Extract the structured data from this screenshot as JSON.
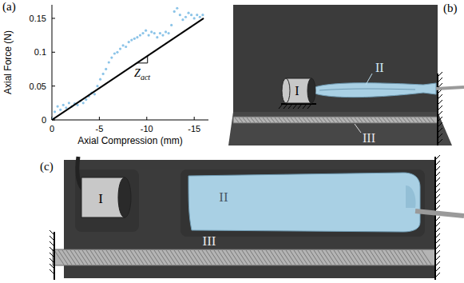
{
  "chart_data": {
    "type": "scatter",
    "x_label": "Axial Compression (mm)",
    "y_label": "Axial Force (N)",
    "xlim": [
      0,
      -16.5
    ],
    "ylim": [
      0,
      0.17
    ],
    "xticks": [
      0,
      -5,
      -10,
      -15
    ],
    "yticks": [
      0,
      0.05,
      0.1,
      0.15
    ],
    "series": [
      {
        "type": "scatter",
        "color": "#8cc4e8",
        "marker": "circle",
        "x": [
          0,
          -0.3,
          -0.6,
          -0.9,
          -1.2,
          -1.5,
          -1.8,
          -2.1,
          -2.4,
          -2.7,
          -3.0,
          -3.3,
          -3.6,
          -3.9,
          -4.2,
          -4.5,
          -4.8,
          -5.1,
          -5.4,
          -5.7,
          -6.0,
          -6.3,
          -6.6,
          -6.9,
          -7.2,
          -7.5,
          -7.8,
          -8.1,
          -8.4,
          -8.7,
          -9.0,
          -9.3,
          -9.6,
          -9.9,
          -10.2,
          -10.5,
          -10.8,
          -11.1,
          -11.4,
          -11.7,
          -12.0,
          -12.3,
          -12.6,
          -12.9,
          -13.2,
          -13.5,
          -13.8,
          -14.1,
          -14.4,
          -14.7,
          -15.0,
          -15.3,
          -15.6,
          -15.9
        ],
        "values": [
          0.002,
          0.012,
          0.02,
          0.015,
          0.022,
          0.018,
          0.025,
          0.02,
          0.024,
          0.022,
          0.028,
          0.025,
          0.03,
          0.035,
          0.04,
          0.038,
          0.05,
          0.06,
          0.068,
          0.075,
          0.085,
          0.092,
          0.098,
          0.1,
          0.105,
          0.11,
          0.108,
          0.115,
          0.118,
          0.12,
          0.122,
          0.125,
          0.128,
          0.132,
          0.125,
          0.13,
          0.128,
          0.122,
          0.128,
          0.125,
          0.13,
          0.128,
          0.14,
          0.16,
          0.165,
          0.155,
          0.148,
          0.152,
          0.158,
          0.155,
          0.15,
          0.155,
          0.152,
          0.155
        ]
      },
      {
        "type": "line",
        "color": "#000000",
        "line_style": "solid",
        "x": [
          0,
          -16
        ],
        "values": [
          0,
          0.15
        ]
      }
    ],
    "annotations": [
      {
        "text": "Z",
        "subscript": "act"
      }
    ]
  },
  "panel_labels": {
    "a": "(a)",
    "b": "(b)",
    "c": "(c)"
  },
  "diagram_b": {
    "labels": [
      "I",
      "II",
      "III"
    ]
  },
  "diagram_c": {
    "labels": [
      "I",
      "II",
      "III"
    ]
  }
}
